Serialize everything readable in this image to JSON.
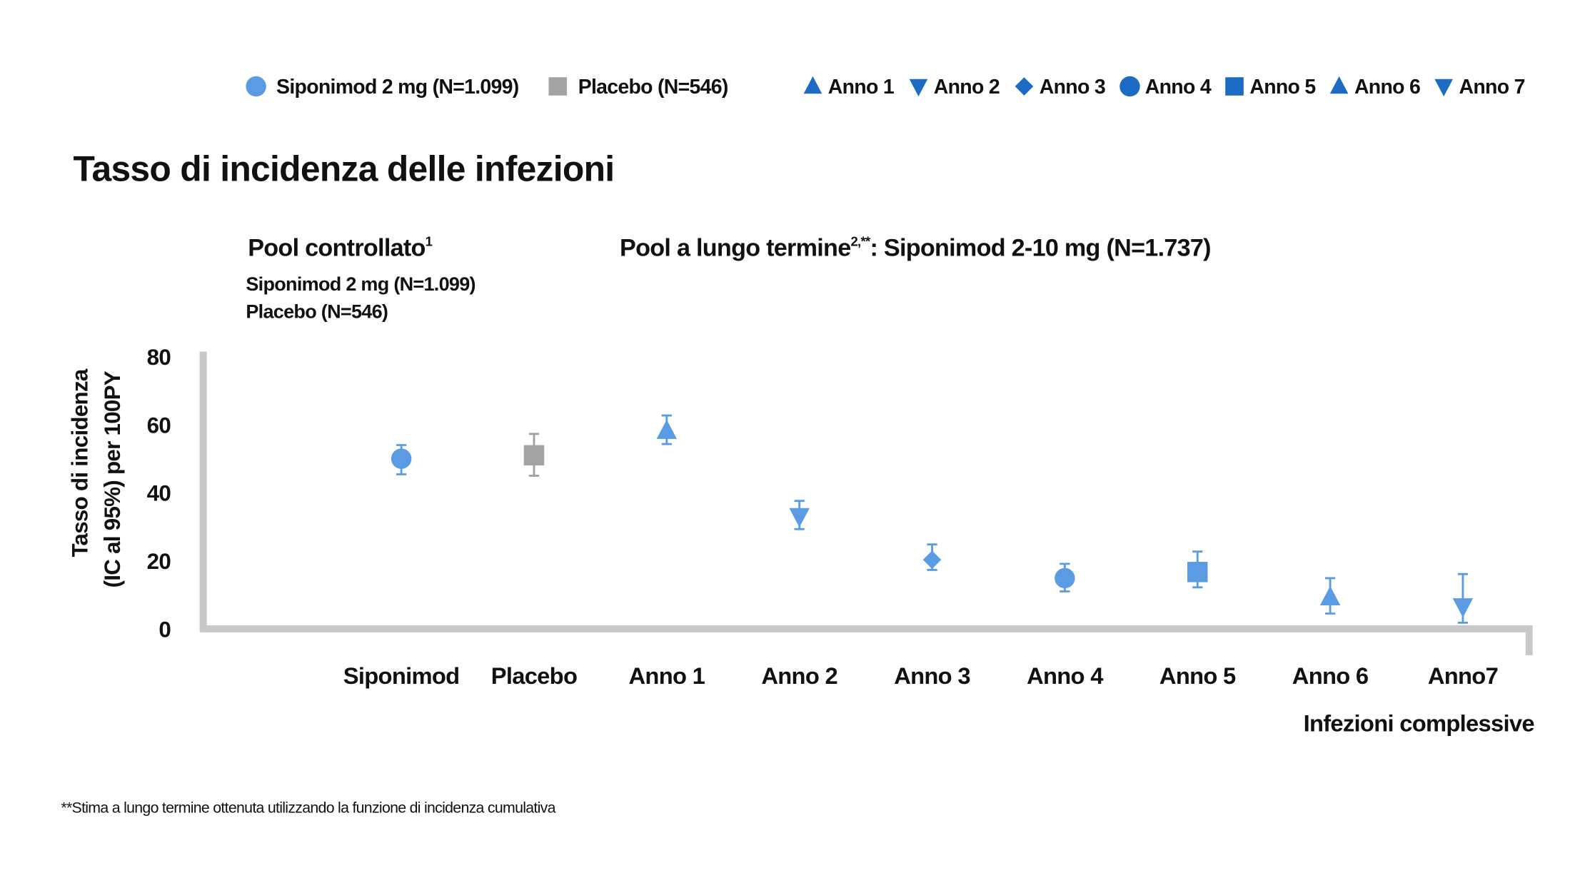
{
  "chart_data": {
    "type": "errorbar",
    "title": "Tasso di incidenza delle infezioni",
    "legend": [
      {
        "label": "Siponimod 2 mg (N=1.099)",
        "marker": "circle",
        "color": "#5b9be3"
      },
      {
        "label": "Placebo (N=546)",
        "marker": "square",
        "color": "#a3a3a3"
      },
      {
        "label": "Anno 1",
        "marker": "triangle-up",
        "color": "#1d6cc4"
      },
      {
        "label": "Anno 2",
        "marker": "triangle-down",
        "color": "#1d6cc4"
      },
      {
        "label": "Anno 3",
        "marker": "diamond",
        "color": "#1d6cc4"
      },
      {
        "label": "Anno 4",
        "marker": "circle",
        "color": "#1d6cc4"
      },
      {
        "label": "Anno 5",
        "marker": "square",
        "color": "#1d6cc4"
      },
      {
        "label": "Anno 6",
        "marker": "triangle-up",
        "color": "#1d6cc4"
      },
      {
        "label": "Anno 7",
        "marker": "triangle-down",
        "color": "#1d6cc4"
      }
    ],
    "groups": [
      {
        "title": "Pool controllato",
        "sup": "1",
        "lines": [
          "Siponimod 2 mg (N=1.099)",
          "Placebo (N=546)"
        ]
      },
      {
        "title": "Pool a lungo termine",
        "sup": "2,**",
        "rest": ": Siponimod 2-10 mg (N=1.737)"
      }
    ],
    "y_label": [
      "Tasso di incidenza",
      "(IC al 95%) per 100PY"
    ],
    "x_label": "Infezioni complessive",
    "footnote": "**Stima a lungo termine ottenuta utilizzando la funzione di incidenza cumulativa",
    "categories": [
      "Siponimod",
      "Placebo",
      "Anno 1",
      "Anno 2",
      "Anno 3",
      "Anno 4",
      "Anno 5",
      "Anno 6",
      "Anno7"
    ],
    "markers": [
      "circle",
      "square",
      "triangle-up",
      "triangle-down",
      "diamond",
      "circle",
      "square",
      "triangle-up",
      "triangle-down"
    ],
    "colors": [
      "#5b9be3",
      "#a3a3a3",
      "#5b9be3",
      "#5b9be3",
      "#5b9be3",
      "#5b9be3",
      "#5b9be3",
      "#5b9be3",
      "#5b9be3"
    ],
    "values": [
      50,
      51,
      58.2,
      33.1,
      20.3,
      14.9,
      16.7,
      9.3,
      6.6
    ],
    "ci_low": [
      45.4,
      45,
      54.3,
      29.3,
      17.3,
      11,
      12.2,
      4.5,
      1.8
    ],
    "ci_high": [
      54,
      57.3,
      62.7,
      37.6,
      24.8,
      19.1,
      22.7,
      14.9,
      16.1
    ],
    "ylim": [
      0,
      80
    ],
    "yticks": [
      0,
      20,
      40,
      60,
      80
    ]
  }
}
